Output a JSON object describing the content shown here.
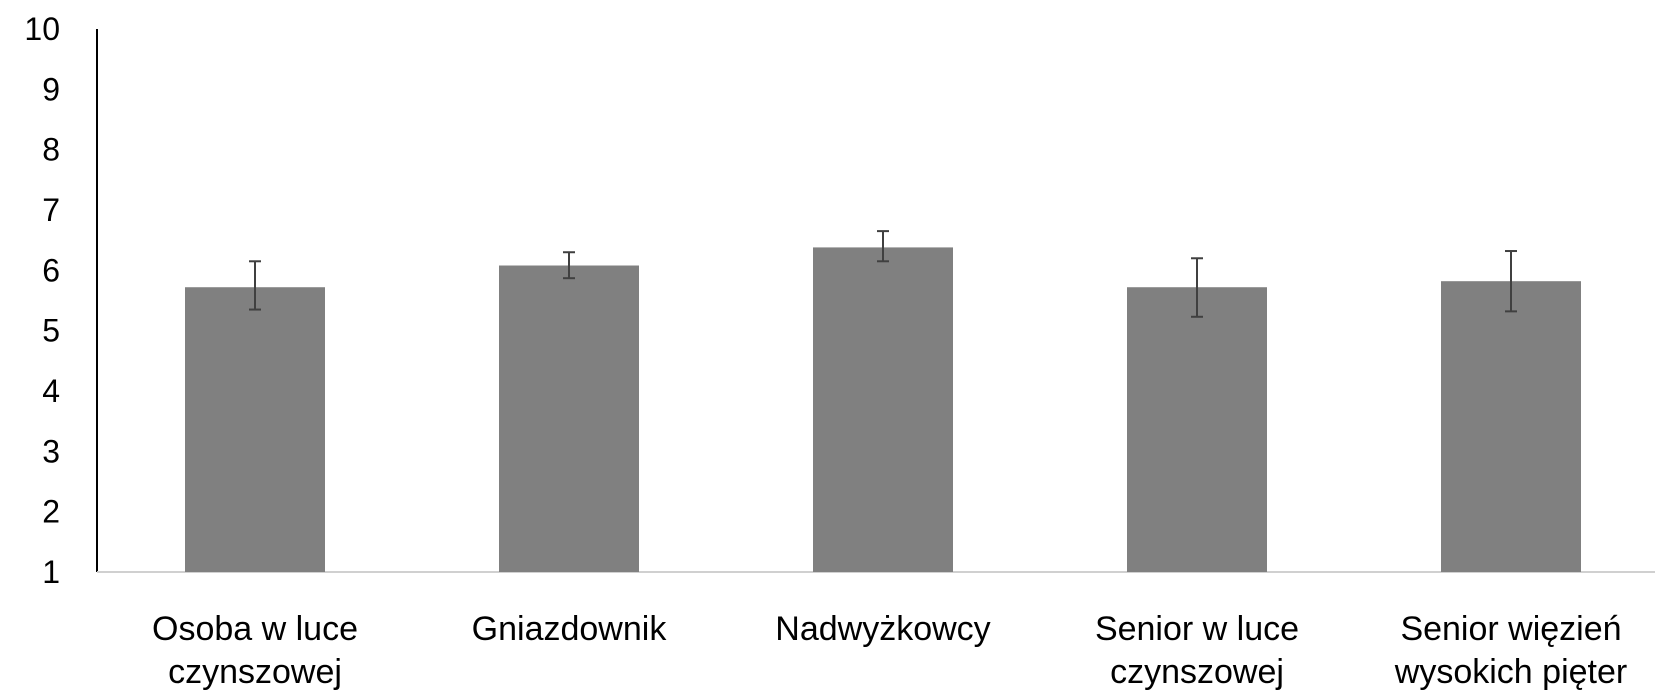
{
  "chart_data": {
    "type": "bar",
    "categories": [
      [
        "Osoba w luce",
        "czynszowej"
      ],
      [
        "Gniazdownik"
      ],
      [
        "Nadwyżkowcy"
      ],
      [
        "Senior w luce",
        "czynszowej"
      ],
      [
        "Senior więzień",
        "wysokich pięter"
      ]
    ],
    "values": [
      5.72,
      6.08,
      6.38,
      5.72,
      5.82
    ],
    "error_low": [
      5.35,
      5.87,
      6.15,
      5.23,
      5.32
    ],
    "error_high": [
      6.15,
      6.3,
      6.65,
      6.2,
      6.32
    ],
    "ylim": [
      1,
      10
    ],
    "yticks": [
      "10",
      "9",
      "8",
      "7",
      "6",
      "5",
      "4",
      "3",
      "2",
      "1"
    ],
    "title": "",
    "xlabel": "",
    "ylabel": "",
    "grid": false,
    "legend": "none",
    "colors": {
      "bar": "#808080",
      "error_bar": "#404040",
      "axis": "#000000",
      "baseline": "#d0d0d0"
    }
  }
}
